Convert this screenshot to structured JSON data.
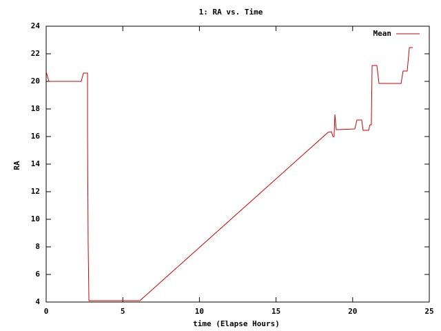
{
  "chart_data": {
    "type": "line",
    "title": "1: RA vs. Time",
    "x_label": "time (Elapse Hours)",
    "y_label": "RA",
    "xlim": [
      0,
      25
    ],
    "xticks": [
      0,
      5,
      10,
      15,
      20,
      25
    ],
    "ylim": [
      4,
      24
    ],
    "yticks": [
      4,
      6,
      8,
      10,
      12,
      14,
      16,
      18,
      20,
      22,
      24
    ],
    "legend": "top-right",
    "series": [
      {
        "name": "Mean",
        "color": "#cc0000",
        "x": [
          0,
          0.18,
          2.29,
          2.43,
          2.7,
          2.7,
          2.74,
          2.79,
          6.12,
          18.39,
          18.62,
          18.71,
          18.79,
          18.84,
          18.93,
          19.02,
          20.14,
          20.28,
          20.59,
          20.68,
          21.04,
          21.13,
          21.22,
          21.27,
          21.58,
          21.72,
          23.16,
          23.29,
          23.56,
          23.7,
          23.92
        ],
        "values": [
          20.7,
          20.0,
          20.0,
          20.6,
          20.6,
          16.5,
          8.3,
          4.1,
          4.1,
          16.3,
          16.35,
          16.0,
          16.0,
          17.6,
          16.5,
          16.5,
          16.55,
          17.2,
          17.2,
          16.45,
          16.45,
          16.85,
          16.85,
          21.15,
          21.15,
          19.85,
          19.85,
          20.75,
          20.75,
          22.45,
          22.45
        ]
      }
    ]
  }
}
